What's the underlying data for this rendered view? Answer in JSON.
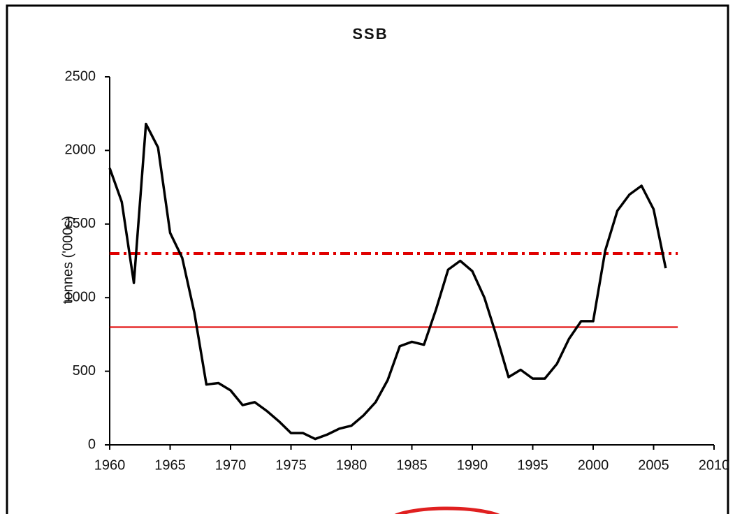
{
  "chart_data": {
    "type": "line",
    "title": "SSB",
    "y_label": "tonnes ('000s)",
    "x": [
      1960,
      1961,
      1962,
      1963,
      1964,
      1965,
      1966,
      1967,
      1968,
      1969,
      1970,
      1971,
      1972,
      1973,
      1974,
      1975,
      1976,
      1977,
      1978,
      1979,
      1980,
      1981,
      1982,
      1983,
      1984,
      1985,
      1986,
      1987,
      1988,
      1989,
      1990,
      1991,
      1992,
      1993,
      1994,
      1995,
      1996,
      1997,
      1998,
      1999,
      2000,
      2001,
      2002,
      2003,
      2004,
      2005,
      2006
    ],
    "series": [
      {
        "color": "#000000",
        "values": [
          1880,
          1650,
          1100,
          2180,
          2020,
          1440,
          1270,
          900,
          410,
          420,
          370,
          270,
          290,
          230,
          160,
          80,
          80,
          40,
          70,
          110,
          130,
          200,
          290,
          440,
          670,
          700,
          680,
          920,
          1190,
          1250,
          1180,
          1000,
          740,
          460,
          510,
          450,
          450,
          550,
          720,
          840,
          840,
          1320,
          1590,
          1700,
          1760,
          1600,
          1200
        ]
      }
    ],
    "reference_lines": [
      {
        "value": 1300,
        "x": [
          1960,
          2007
        ],
        "color": "#e00000",
        "style": "dashed"
      },
      {
        "value": 800,
        "x": [
          1960,
          2007
        ],
        "color": "#e00000",
        "style": "solid"
      }
    ],
    "xlim": [
      1960,
      2010
    ],
    "xticks": [
      1960,
      1965,
      1970,
      1975,
      1980,
      1985,
      1990,
      1995,
      2000,
      2005,
      2010
    ],
    "ylim": [
      0,
      2500
    ],
    "yticks": [
      0,
      500,
      1000,
      1500,
      2000,
      2500
    ],
    "grid": false
  }
}
